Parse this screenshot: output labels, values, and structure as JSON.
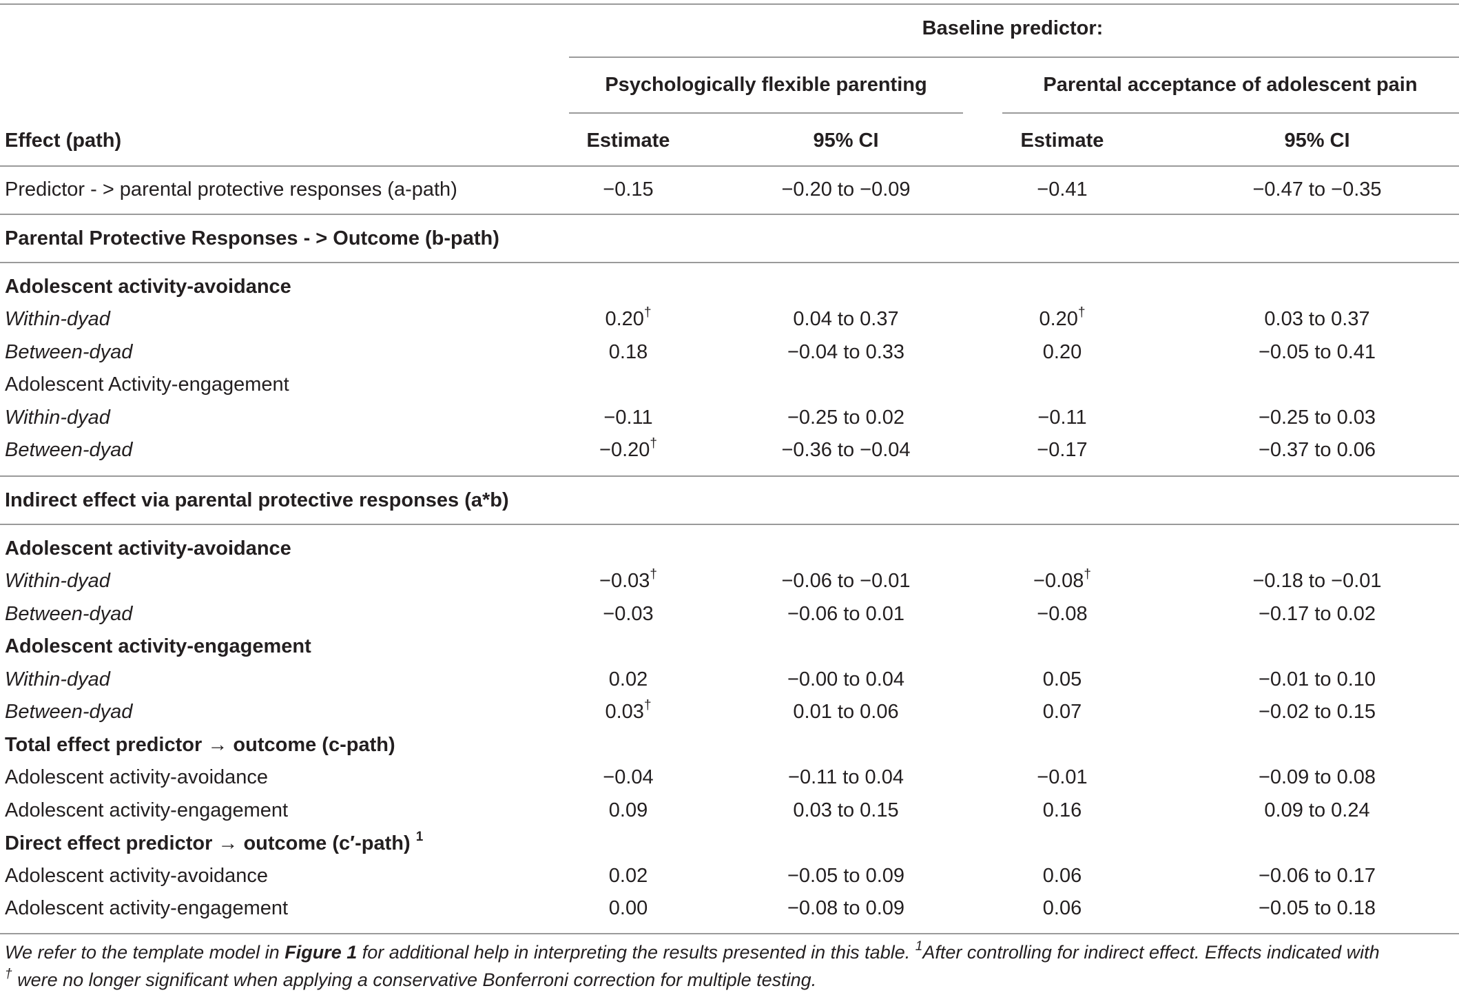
{
  "header": {
    "baseline": "Baseline predictor:",
    "group1": "Psychologically flexible parenting",
    "group2": "Parental acceptance of adolescent pain",
    "effect_col": "Effect (path)",
    "est": "Estimate",
    "ci": "95% CI"
  },
  "rows": [
    {
      "label": "Predictor - > parental protective responses (a-path)",
      "style": "normal",
      "e1": "−0.15",
      "c1": "−0.20 to −0.09",
      "e2": "−0.41",
      "c2": "−0.47 to −0.35"
    },
    {
      "label": "Parental Protective Responses - > Outcome (b-path)",
      "style": "bold"
    },
    {
      "label": "Adolescent activity-avoidance",
      "style": "bold"
    },
    {
      "label": "Within-dyad",
      "style": "italic",
      "e1": "0.20",
      "s1": "†",
      "c1": "0.04 to 0.37",
      "e2": "0.20",
      "s2": "†",
      "c2": "0.03 to 0.37"
    },
    {
      "label": "Between-dyad",
      "style": "italic",
      "e1": "0.18",
      "c1": "−0.04 to 0.33",
      "e2": "0.20",
      "c2": "−0.05 to 0.41"
    },
    {
      "label": "Adolescent Activity-engagement",
      "style": "normal"
    },
    {
      "label": "Within-dyad",
      "style": "italic",
      "e1": "−0.11",
      "c1": "−0.25 to 0.02",
      "e2": "−0.11",
      "c2": "−0.25 to 0.03"
    },
    {
      "label": "Between-dyad",
      "style": "italic",
      "e1": "−0.20",
      "s1": "†",
      "c1": "−0.36 to −0.04",
      "e2": "−0.17",
      "c2": "−0.37 to 0.06"
    },
    {
      "label": "Indirect effect via parental protective responses (a*b)",
      "style": "bold"
    },
    {
      "label": "Adolescent activity-avoidance",
      "style": "bold"
    },
    {
      "label": "Within-dyad",
      "style": "italic",
      "e1": "−0.03",
      "s1": "†",
      "c1": "−0.06 to −0.01",
      "e2": "−0.08",
      "s2": "†",
      "c2": "−0.18 to −0.01"
    },
    {
      "label": "Between-dyad",
      "style": "italic",
      "e1": "−0.03",
      "c1": "−0.06 to 0.01",
      "e2": "−0.08",
      "c2": "−0.17 to 0.02"
    },
    {
      "label": "Adolescent activity-engagement",
      "style": "bold"
    },
    {
      "label": "Within-dyad",
      "style": "italic",
      "e1": "0.02",
      "c1": "−0.00 to 0.04",
      "e2": "0.05",
      "c2": "−0.01 to 0.10"
    },
    {
      "label": "Between-dyad",
      "style": "italic",
      "e1": "0.03",
      "s1": "†",
      "c1": "0.01 to 0.06",
      "e2": "0.07",
      "c2": "−0.02 to 0.15"
    },
    {
      "label": "Total effect predictor → outcome (c-path)",
      "style": "bold"
    },
    {
      "label": "Adolescent activity-avoidance",
      "style": "normal",
      "e1": "−0.04",
      "c1": "−0.11 to 0.04",
      "e2": "−0.01",
      "c2": "−0.09 to 0.08"
    },
    {
      "label": "Adolescent activity-engagement",
      "style": "normal",
      "e1": "0.09",
      "c1": "0.03 to 0.15",
      "e2": "0.16",
      "c2": "0.09 to 0.24"
    },
    {
      "label": "Direct effect predictor → outcome (c′-path)",
      "style": "bold",
      "label_sup": "1"
    },
    {
      "label": "Adolescent activity-avoidance",
      "style": "normal",
      "e1": "0.02",
      "c1": "−0.05 to 0.09",
      "e2": "0.06",
      "c2": "−0.06 to 0.17"
    },
    {
      "label": "Adolescent activity-engagement",
      "style": "normal",
      "e1": "0.00",
      "c1": "−0.08 to 0.09",
      "e2": "0.06",
      "c2": "−0.05 to 0.18"
    }
  ],
  "footnote": {
    "part1": "We refer to the template model in ",
    "fig": "Figure 1",
    "part2": " for additional help in interpreting the results presented in this table. ",
    "sup1": "1",
    "part3": "After controlling for indirect effect. Effects indicated with",
    "sup2": "†",
    "part4": " were no longer significant when applying a conservative Bonferroni correction for multiple testing."
  }
}
